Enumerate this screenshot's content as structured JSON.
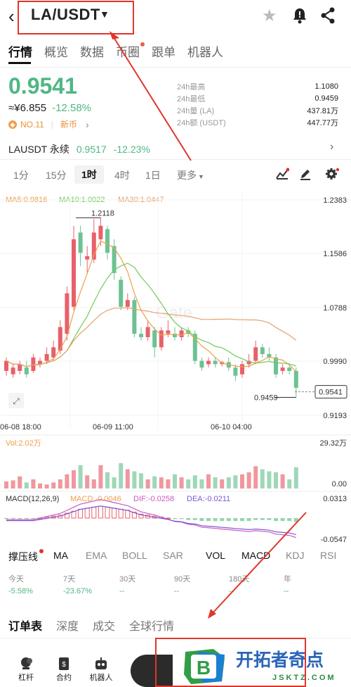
{
  "header": {
    "back_icon": "back-chevron-icon",
    "pair": "LA/USDT",
    "caret_icon": "caret-down-icon",
    "favorite_icon": "star-icon",
    "alert_icon": "bell-icon",
    "share_icon": "share-icon"
  },
  "tabs": [
    {
      "label": "行情",
      "active": true
    },
    {
      "label": "概览"
    },
    {
      "label": "数据"
    },
    {
      "label": "币圈",
      "dot": true
    },
    {
      "label": "跟单"
    },
    {
      "label": "机器人"
    }
  ],
  "price": {
    "last": "0.9541",
    "cny": "≈¥6.855",
    "change": "-12.58%",
    "rank": "NO.11",
    "tag": "新币"
  },
  "stats": [
    {
      "label": "24h最高",
      "value": "1.1080"
    },
    {
      "label": "24h最低",
      "value": "0.9459"
    },
    {
      "label": "24h量 (LA)",
      "value": "437.81万"
    },
    {
      "label": "24h额 (USDT)",
      "value": "447.77万"
    }
  ],
  "perp": {
    "name": "LAUSDT 永续",
    "price": "0.9517",
    "change": "-12.23%"
  },
  "intervals": [
    "1分",
    "15分",
    "1时",
    "4时",
    "1日",
    "更多"
  ],
  "chart": {
    "ma_legend": {
      "ma5": "MA5:0.9816",
      "ma10": "MA10:1.0022",
      "ma30": "MA30:1.0447"
    },
    "price_ticks": [
      "1.2383",
      "1.1586",
      "1.0788",
      "0.9990",
      "0.9193"
    ],
    "high_label": "1.2118",
    "low_label": "0.9459",
    "current_tag": "0.9541",
    "time_labels": [
      "06-08 18:00",
      "06-09 11:00",
      "06-10 04:00"
    ],
    "watermark": "Gate",
    "vol_label": "Vol:2.02万",
    "vol_ticks": [
      "29.32万",
      "0.00"
    ],
    "macd_legend": {
      "name": "MACD(12,26,9)",
      "macd": "MACD:-0.0046",
      "dif": "DIF:-0.0258",
      "dea": "DEA:-0.0211"
    },
    "macd_ticks": [
      "0.0313",
      "-0.0547"
    ],
    "colors": {
      "up": "#e8606c",
      "down": "#6cc293",
      "ma5": "#ee9f4a",
      "ma10": "#72cc5a",
      "ma30": "#e7a06a",
      "dif": "#cc58c4",
      "dea": "#7b5ad6"
    }
  },
  "indicators": [
    "撑压线",
    "MA",
    "EMA",
    "BOLL",
    "SAR",
    "VOL",
    "MACD",
    "KDJ",
    "RSI"
  ],
  "performance": [
    {
      "label": "今天",
      "value": "-5.58%"
    },
    {
      "label": "7天",
      "value": "-23.67%"
    },
    {
      "label": "30天",
      "value": "--"
    },
    {
      "label": "90天",
      "value": "--"
    },
    {
      "label": "180天",
      "value": "--"
    },
    {
      "label": "年",
      "value": "--"
    }
  ],
  "bottom_tabs": [
    "订单表",
    "深度",
    "成交",
    "全球行情"
  ],
  "nav": [
    {
      "label": "杠杆",
      "icon": "leverage-icon"
    },
    {
      "label": "合约",
      "icon": "contract-icon"
    },
    {
      "label": "机器人",
      "icon": "robot-icon"
    }
  ],
  "logo": {
    "name": "开拓者奇点",
    "domain": "JSKTZ.COM",
    "letter": "B"
  }
}
